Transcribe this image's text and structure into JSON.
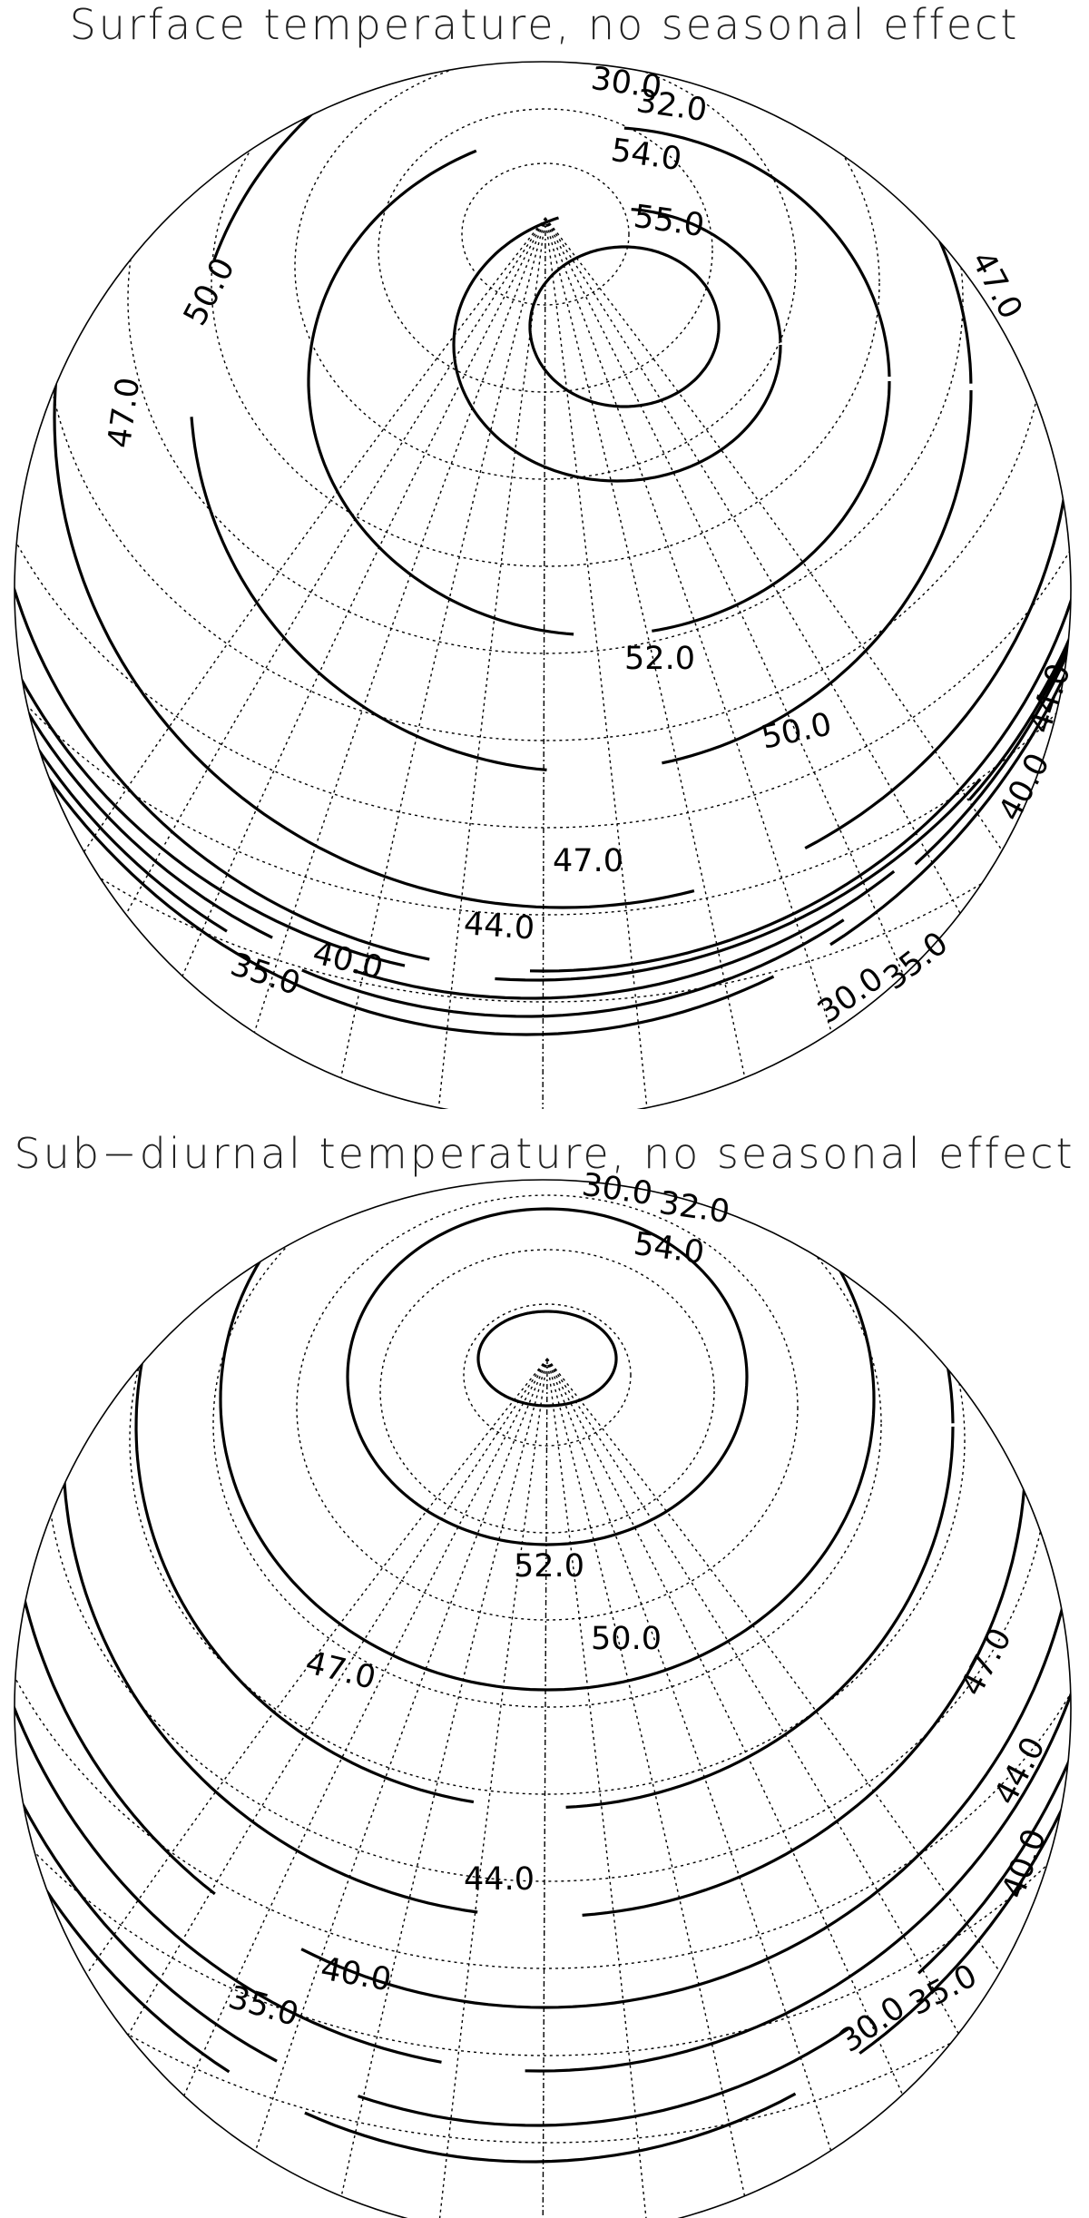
{
  "chart_data": [
    {
      "type": "contour",
      "title": "Surface temperature, no seasonal effect",
      "projection": "orthographic",
      "grid": true,
      "contour_levels": [
        30.0,
        35.0,
        40.0,
        44.0,
        47.0,
        50.0,
        52.0,
        54.0,
        55.0
      ],
      "contour_labels": [
        "30.0",
        "32.0",
        "54.0",
        "55.0",
        "50.0",
        "47.0",
        "47.0",
        "52.0",
        "50.0",
        "44.0",
        "40.0",
        "47.0",
        "44.0",
        "40.0",
        "35.0",
        "35.0",
        "30.0"
      ]
    },
    {
      "type": "contour",
      "title": "Sub−diurnal temperature, no seasonal effect",
      "projection": "orthographic",
      "grid": true,
      "contour_levels": [
        30.0,
        35.0,
        40.0,
        44.0,
        47.0,
        50.0,
        52.0,
        54.0
      ],
      "contour_labels": [
        "30.0",
        "32.0",
        "54.0",
        "52.0",
        "50.0",
        "47.0",
        "47.0",
        "44.0",
        "44.0",
        "40.0",
        "40.0",
        "35.0",
        "35.0",
        "30.0"
      ]
    }
  ]
}
